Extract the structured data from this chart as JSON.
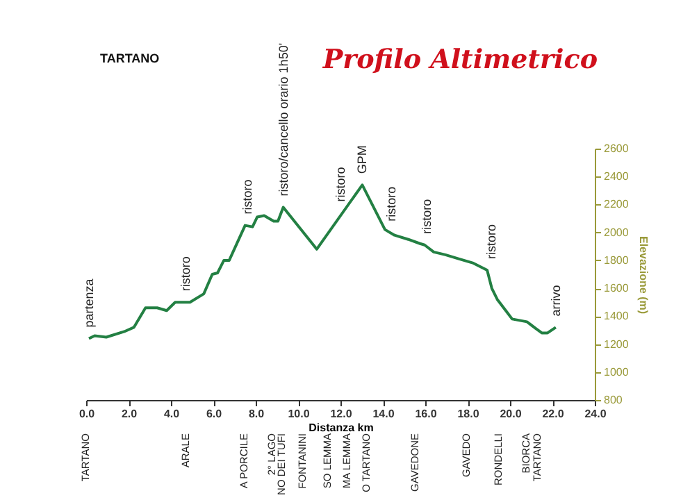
{
  "chart_data": {
    "type": "line",
    "title": "Profilo Altimetrico",
    "xlabel": "Distanza km",
    "ylabel": "Elevazione (m)",
    "x": [
      0.13,
      0.4,
      0.95,
      1.8,
      2.25,
      2.8,
      3.35,
      3.8,
      4.2,
      4.9,
      5.55,
      5.95,
      6.2,
      6.5,
      6.75,
      7.5,
      7.85,
      8.07,
      8.4,
      8.85,
      9.05,
      9.3,
      10.88,
      13.03,
      14.1,
      14.55,
      15.2,
      15.75,
      15.97,
      16.4,
      16.95,
      17.6,
      18.27,
      18.92,
      19.14,
      19.4,
      19.8,
      20.1,
      20.8,
      21.23,
      21.5,
      21.77,
      22.16
    ],
    "series": [
      {
        "color": "#238043",
        "values": [
          1240,
          1260,
          1250,
          1290,
          1320,
          1460,
          1460,
          1440,
          1500,
          1500,
          1560,
          1700,
          1710,
          1800,
          1800,
          2050,
          2040,
          2110,
          2120,
          2080,
          2080,
          2180,
          1880,
          2340,
          2020,
          1980,
          1950,
          1920,
          1910,
          1860,
          1840,
          1810,
          1780,
          1730,
          1600,
          1520,
          1440,
          1380,
          1360,
          1310,
          1280,
          1280,
          1320
        ]
      }
    ],
    "xlim": [
      0,
      24
    ],
    "xticks": [
      {
        "value": 0,
        "label": "0.0"
      },
      {
        "value": 2,
        "label": "2.0"
      },
      {
        "value": 4,
        "label": "4.0"
      },
      {
        "value": 6,
        "label": "6.0"
      },
      {
        "value": 8,
        "label": "8.0"
      },
      {
        "value": 10,
        "label": "10.0"
      },
      {
        "value": 12,
        "label": "12.0"
      },
      {
        "value": 14,
        "label": "14.0"
      },
      {
        "value": 16,
        "label": "16.0"
      },
      {
        "value": 18,
        "label": "18.0"
      },
      {
        "value": 20,
        "label": "20.0"
      },
      {
        "value": 22,
        "label": "22.0"
      },
      {
        "value": 24,
        "label": "24.0"
      }
    ],
    "ylim": [
      800,
      2600
    ],
    "yticks": [
      800,
      1000,
      1200,
      1400,
      1600,
      1800,
      2000,
      2200,
      2400,
      2600
    ],
    "grid": false,
    "marker": "none",
    "line_style": "solid",
    "annotations": [
      "TARTANO",
      {
        "text": "partenza",
        "x": 0.13,
        "y": 1240
      },
      {
        "text": "ristoro",
        "x": 4.7,
        "y": 1500
      },
      {
        "text": "ristoro",
        "x": 7.6,
        "y": 2050
      },
      {
        "text": "ristoro/cancello orario 1h50'",
        "x": 9.3,
        "y": 2180
      },
      {
        "text": "ristoro",
        "x": 12.0,
        "y": 2140
      },
      {
        "text": "GPM",
        "x": 13.03,
        "y": 2340
      },
      {
        "text": "ristoro",
        "x": 14.4,
        "y": 2000
      },
      {
        "text": "ristoro",
        "x": 16.05,
        "y": 1910
      },
      {
        "text": "ristoro",
        "x": 19.1,
        "y": 1730
      },
      {
        "text": "arrivo",
        "x": 22.16,
        "y": 1320
      },
      "TARTANO",
      "ARALE",
      "A PORCILE",
      "2° LAGO",
      "NO DEI TUFI",
      "FONTANINI",
      "SO LEMMA",
      "MA LEMMA",
      "O TARTANO",
      "GAVEDONE",
      "GAVEDO",
      "RONDELLI",
      "BIORCA",
      "TARTANO"
    ]
  }
}
